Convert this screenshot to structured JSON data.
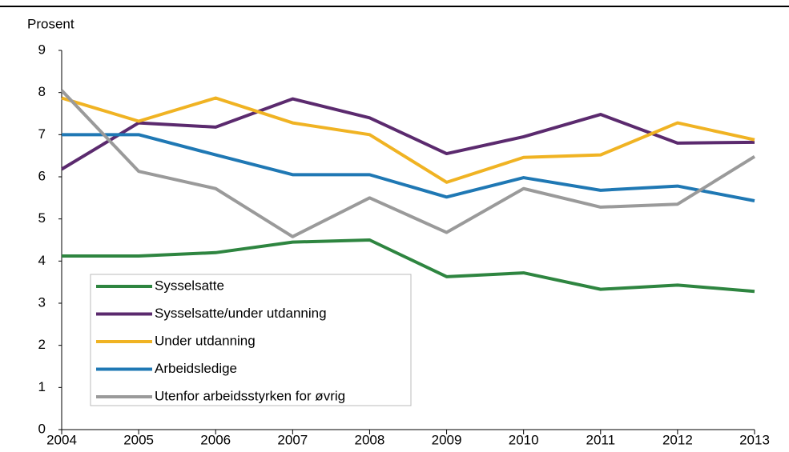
{
  "chart_data": {
    "type": "line",
    "y_label": "Prosent",
    "x": [
      2004,
      2005,
      2006,
      2007,
      2008,
      2009,
      2010,
      2011,
      2012,
      2013
    ],
    "xlim": [
      2004,
      2013
    ],
    "xticks": [
      2004,
      2005,
      2006,
      2007,
      2008,
      2009,
      2010,
      2011,
      2012,
      2013
    ],
    "ylim": [
      0,
      9
    ],
    "yticks": [
      0,
      1,
      2,
      3,
      4,
      5,
      6,
      7,
      8,
      9
    ],
    "series": [
      {
        "name": "Sysselsatte",
        "color": "#2e8540",
        "values": [
          4.12,
          4.12,
          4.2,
          4.45,
          4.5,
          3.63,
          3.72,
          3.33,
          3.43,
          3.28
        ]
      },
      {
        "name": "Sysselsatte/under utdanning",
        "color": "#5b2a6e",
        "values": [
          6.18,
          7.28,
          7.18,
          7.85,
          7.4,
          6.55,
          6.95,
          7.48,
          6.8,
          6.82
        ]
      },
      {
        "name": "Under utdanning",
        "color": "#f0b323",
        "values": [
          7.87,
          7.32,
          7.87,
          7.28,
          7.0,
          5.87,
          6.46,
          6.52,
          7.28,
          6.88
        ]
      },
      {
        "name": "Arbeidsledige",
        "color": "#1f78b4",
        "values": [
          7.0,
          7.0,
          6.52,
          6.05,
          6.05,
          5.52,
          5.98,
          5.68,
          5.78,
          5.43
        ]
      },
      {
        "name": "Utenfor arbeidsstyrken for øvrig",
        "color": "#9a9a9a",
        "values": [
          8.05,
          6.13,
          5.72,
          4.58,
          5.5,
          4.68,
          5.72,
          5.28,
          5.35,
          6.48
        ]
      }
    ]
  }
}
